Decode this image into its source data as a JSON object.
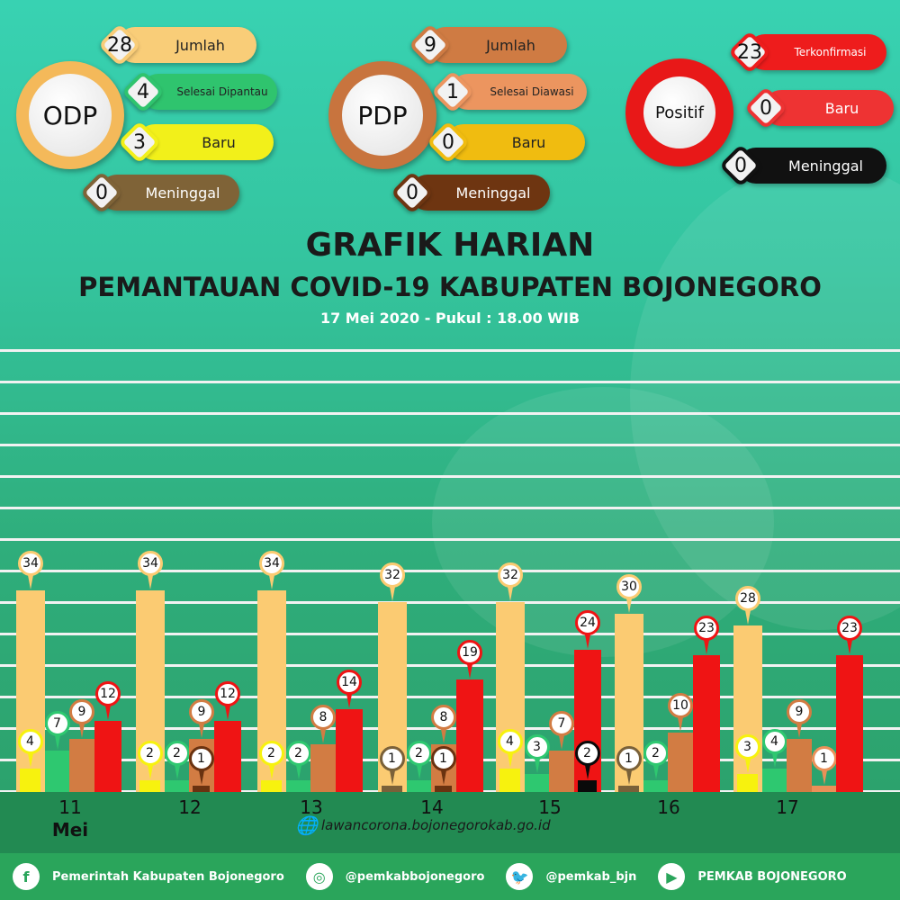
{
  "odp": {
    "label": "ODP",
    "items": [
      {
        "value": "28",
        "label": "Jumlah",
        "color": "#f9cd78"
      },
      {
        "value": "4",
        "label": "Selesai Dipantau",
        "color": "#2fc46e"
      },
      {
        "value": "3",
        "label": "Baru",
        "color": "#f2f01a"
      },
      {
        "value": "0",
        "label": "Meninggal",
        "color": "#7f6337"
      }
    ]
  },
  "pdp": {
    "label": "PDP",
    "items": [
      {
        "value": "9",
        "label": "Jumlah",
        "color": "#cf7b43"
      },
      {
        "value": "1",
        "label": "Selesai Diawasi",
        "color": "#ec955f"
      },
      {
        "value": "0",
        "label": "Baru",
        "color": "#f0bc10"
      },
      {
        "value": "0",
        "label": "Meninggal",
        "color": "#6e3511"
      }
    ]
  },
  "positif": {
    "label": "Positif",
    "items": [
      {
        "value": "23",
        "label": "Terkonfirmasi",
        "color": "#ee1c1c"
      },
      {
        "value": "0",
        "label": "Baru",
        "color": "#ee3333"
      },
      {
        "value": "0",
        "label": "Meninggal",
        "color": "#111111"
      }
    ]
  },
  "header": {
    "title": "GRAFIK HARIAN",
    "subtitle": "PEMANTAUAN COVID-19 KABUPATEN BOJONEGORO",
    "date": "17 Mei 2020 - Pukul : 18.00 WIB"
  },
  "chart_data": {
    "type": "bar",
    "month_label": "Mei",
    "colors": {
      "odp_jumlah": "#fbcb72",
      "odp_selesai": "#2ec870",
      "odp_baru": "#f7f20e",
      "odp_meninggal": "#7a6139",
      "pdp_jumlah": "#d27c43",
      "pdp_selesai": "#ea9058",
      "pdp_meninggal": "#6a3210",
      "positif": "#ef1414",
      "positif_meninggal": "#0a0a0a"
    },
    "days": [
      {
        "date": "11",
        "bars": [
          {
            "series": "odp_jumlah",
            "value": 34
          },
          {
            "series": "odp_baru",
            "value": 4
          },
          {
            "series": "odp_selesai",
            "value": 7
          },
          {
            "series": "pdp_jumlah",
            "value": 9
          },
          {
            "series": "positif",
            "value": 12
          }
        ]
      },
      {
        "date": "12",
        "bars": [
          {
            "series": "odp_jumlah",
            "value": 34
          },
          {
            "series": "odp_baru",
            "value": 2
          },
          {
            "series": "odp_selesai",
            "value": 2
          },
          {
            "series": "pdp_jumlah",
            "value": 9
          },
          {
            "series": "pdp_meninggal",
            "value": 1
          },
          {
            "series": "positif",
            "value": 12
          }
        ]
      },
      {
        "date": "13",
        "bars": [
          {
            "series": "odp_jumlah",
            "value": 34
          },
          {
            "series": "odp_baru",
            "value": 2
          },
          {
            "series": "odp_selesai",
            "value": 2
          },
          {
            "series": "pdp_jumlah",
            "value": 8
          },
          {
            "series": "positif",
            "value": 14
          }
        ]
      },
      {
        "date": "14",
        "bars": [
          {
            "series": "odp_jumlah",
            "value": 32
          },
          {
            "series": "odp_meninggal",
            "value": 1
          },
          {
            "series": "odp_selesai",
            "value": 2
          },
          {
            "series": "pdp_jumlah",
            "value": 8
          },
          {
            "series": "pdp_meninggal",
            "value": 1
          },
          {
            "series": "positif",
            "value": 19
          }
        ]
      },
      {
        "date": "15",
        "bars": [
          {
            "series": "odp_jumlah",
            "value": 32
          },
          {
            "series": "odp_baru",
            "value": 4
          },
          {
            "series": "odp_selesai",
            "value": 3
          },
          {
            "series": "pdp_jumlah",
            "value": 7
          },
          {
            "series": "positif",
            "value": 24
          },
          {
            "series": "positif_meninggal",
            "value": 2
          }
        ]
      },
      {
        "date": "16",
        "bars": [
          {
            "series": "odp_jumlah",
            "value": 30
          },
          {
            "series": "odp_meninggal",
            "value": 1
          },
          {
            "series": "odp_selesai",
            "value": 2
          },
          {
            "series": "pdp_jumlah",
            "value": 10
          },
          {
            "series": "positif",
            "value": 23
          }
        ]
      },
      {
        "date": "17",
        "bars": [
          {
            "series": "odp_jumlah",
            "value": 28
          },
          {
            "series": "odp_baru",
            "value": 3
          },
          {
            "series": "odp_selesai",
            "value": 4
          },
          {
            "series": "pdp_jumlah",
            "value": 9
          },
          {
            "series": "pdp_selesai",
            "value": 1
          },
          {
            "series": "positif",
            "value": 23
          }
        ]
      }
    ]
  },
  "website": "lawancorona.bojonegorokab.go.id",
  "footer": [
    {
      "icon": "facebook-icon",
      "glyph": "f",
      "text": "Pemerintah Kabupaten Bojonegoro"
    },
    {
      "icon": "instagram-icon",
      "glyph": "◎",
      "text": "@pemkabbojonegoro"
    },
    {
      "icon": "twitter-icon",
      "glyph": "🐦",
      "text": "@pemkab_bjn"
    },
    {
      "icon": "youtube-icon",
      "glyph": "▶",
      "text": "PEMKAB BOJONEGORO"
    }
  ]
}
